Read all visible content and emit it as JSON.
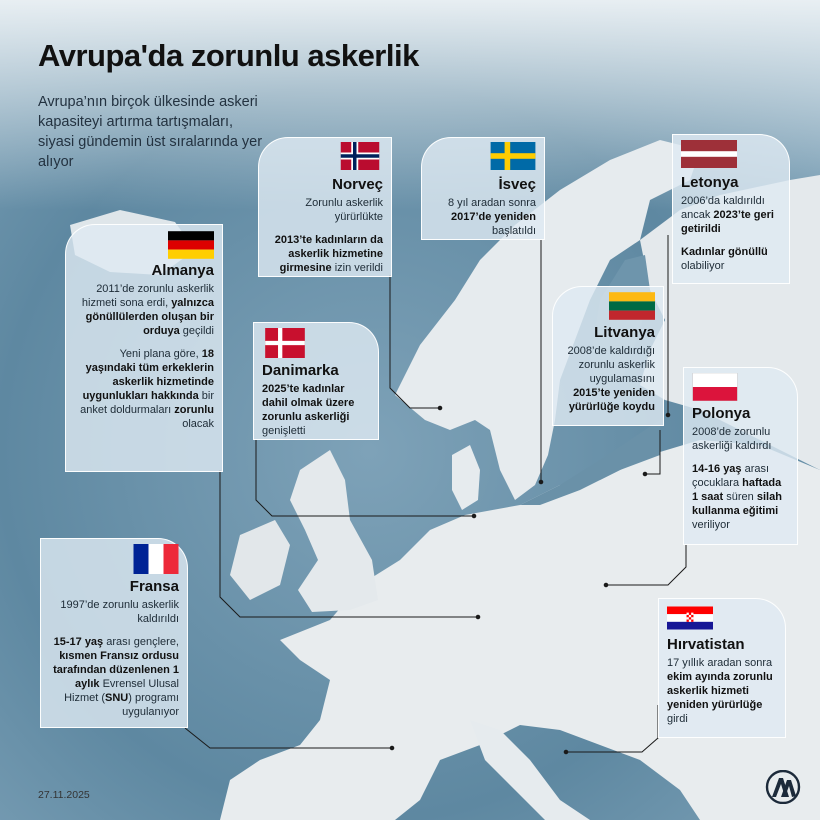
{
  "title": "Avrupa'da zorunlu askerlik",
  "subtitle": "Avrupa’nın birçok ülkesinde askeri kapasiteyi artırma tartışmaları, siyasi gündemin üst sıralarında yer alıyor",
  "date": "27.11.2025",
  "logo_icon": "aa-agency-logo",
  "colors": {
    "sea": "#5f8aa3",
    "land": "#e8ecee",
    "card": "#dfeaf2",
    "logo": "#1c2a3a"
  },
  "countries": {
    "norway": {
      "name": "Norveç",
      "flag_icon": "norway-flag-icon",
      "text1": "Zorunlu askerlik yürürlükte",
      "text2_b1": "2013’te kadınların da askerlik hizmetine girmesine",
      "text2_n1": " izin verildi"
    },
    "sweden": {
      "name": "İsveç",
      "flag_icon": "sweden-flag-icon",
      "text1_n1": "8 yıl aradan sonra ",
      "text1_b1": "2017’de yeniden",
      "text1_n2": " başlatıldı"
    },
    "latvia": {
      "name": "Letonya",
      "flag_icon": "latvia-flag-icon",
      "text1_n1": "2006’da kaldırıldı ancak ",
      "text1_b1": "2023’te geri getirildi",
      "text2_b1": "Kadınlar gönüllü",
      "text2_n1": " olabiliyor"
    },
    "germany": {
      "name": "Almanya",
      "flag_icon": "germany-flag-icon",
      "text1_n1": "2011’de zorunlu askerlik hizmeti sona erdi, ",
      "text1_b1": "yalnızca gönüllülerden oluşan bir orduya",
      "text1_n2": " geçildi",
      "text2_n1": "Yeni plana göre, ",
      "text2_b1": "18 yaşındaki tüm erkeklerin askerlik hizmetinde uygunlukları hakkında",
      "text2_n2": " bir anket doldurmaları ",
      "text2_b2": "zorunlu",
      "text2_n3": " olacak"
    },
    "denmark": {
      "name": "Danimarka",
      "flag_icon": "denmark-flag-icon",
      "text1_b1": "2025’te kadınlar dahil olmak üzere zorunlu askerliği",
      "text1_n1": " genişletti"
    },
    "lithuania": {
      "name": "Litvanya",
      "flag_icon": "lithuania-flag-icon",
      "text1_n1": "2008’de kaldırdığı zorunlu askerlik uygulamasını ",
      "text1_b1": "2015’te yeniden yürürlüğe koydu"
    },
    "poland": {
      "name": "Polonya",
      "flag_icon": "poland-flag-icon",
      "text1": "2008’de zorunlu askerliği kaldırdı",
      "text2_b1": "14-16 yaş",
      "text2_n1": " arası çocuklara ",
      "text2_b2": "haftada 1 saat",
      "text2_n2": " süren ",
      "text2_b3": "silah kullanma eğitimi",
      "text2_n3": " veriliyor"
    },
    "france": {
      "name": "Fransa",
      "flag_icon": "france-flag-icon",
      "text1": "1997’de zorunlu askerlik kaldırıldı",
      "text2_b1": "15-17 yaş",
      "text2_n1": " arası gençlere, ",
      "text2_b2": "kısmen Fransız ordusu tarafından düzenlenen 1 aylık",
      "text2_n2": " Evrensel Ulusal Hizmet (",
      "text2_b3": "SNU",
      "text2_n3": ") programı uygulanıyor"
    },
    "croatia": {
      "name": "Hırvatistan",
      "flag_icon": "croatia-flag-icon",
      "text1_n1": "17 yıllık aradan sonra ",
      "text1_b1": "ekim ayında zorunlu askerlik hizmeti yeniden yürürlüğe",
      "text1_n2": " girdi"
    }
  }
}
